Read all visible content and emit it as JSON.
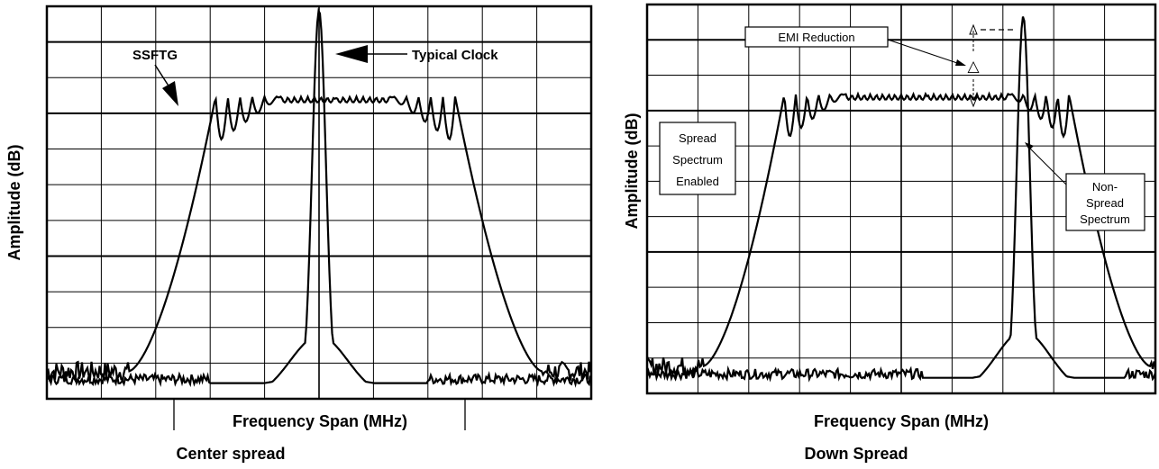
{
  "colors": {
    "trace": "#000000",
    "grid": "#000000",
    "background": "#ffffff"
  },
  "chart_data": [
    {
      "type": "line",
      "panel": "left",
      "caption": "Center spread",
      "xlabel": "Frequency Span (MHz)",
      "ylabel": "Amplitude (dB)",
      "grid": true,
      "axis_units": "relative (no tick labels printed)",
      "annotations": [
        {
          "id": "ssftg",
          "text": "SSFTG"
        },
        {
          "id": "typical",
          "text": "Typical Clock"
        }
      ],
      "series": [
        {
          "name": "SSFTG",
          "shape": "spread-plateau",
          "center": 0.53,
          "half_width": 0.22,
          "plateau_level": 0.77,
          "noise_floor": 0.07
        },
        {
          "name": "Typical Clock",
          "shape": "narrow-peak",
          "center": 0.5,
          "peak_level": 0.99,
          "noise_floor": 0.04
        }
      ]
    },
    {
      "type": "line",
      "panel": "right",
      "caption": "Down Spread",
      "xlabel": "Frequency Span (MHz)",
      "ylabel": "Amplitude (dB)",
      "grid": true,
      "axis_units": "relative (no tick labels printed)",
      "annotations": [
        {
          "id": "emi",
          "text": "EMI Reduction"
        },
        {
          "id": "delta",
          "text": "△"
        },
        {
          "id": "spread_on",
          "lines": [
            "Spread",
            "Spectrum",
            "Enabled"
          ]
        },
        {
          "id": "non_spread",
          "lines": [
            "Non-",
            "Spread",
            "Spectrum"
          ]
        }
      ],
      "series": [
        {
          "name": "Spread Spectrum Enabled",
          "shape": "spread-plateau",
          "center": 0.55,
          "half_width": 0.28,
          "plateau_level": 0.77,
          "noise_floor": 0.07
        },
        {
          "name": "Non-Spread Spectrum",
          "shape": "narrow-peak",
          "center": 0.74,
          "peak_level": 0.97,
          "noise_floor": 0.04
        }
      ]
    }
  ]
}
